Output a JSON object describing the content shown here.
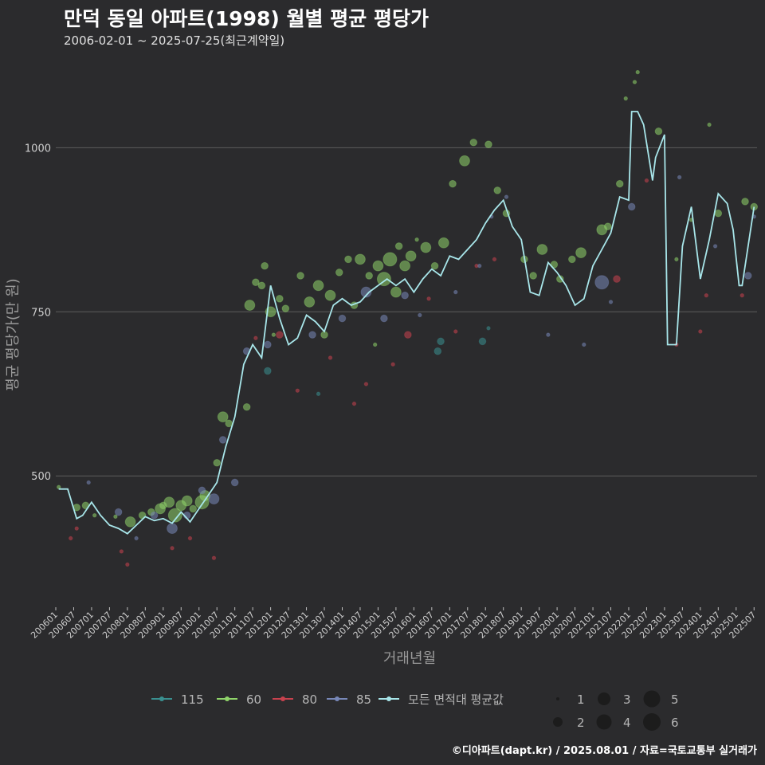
{
  "title": "만덕 동일 아파트(1998) 월별 평균 평당가",
  "subtitle": "2006-02-01 ~ 2025-07-25(최근계약일)",
  "caption": "©디아파트(dapt.kr) / 2025.08.01 / 자료=국토교통부 실거래가",
  "colors": {
    "background": "#2b2b2d",
    "grid": "#5c5c5c",
    "115": "#3a9090",
    "60": "#8fd46a",
    "80": "#c8424e",
    "85": "#7888b8",
    "avg": "#a8e6ea"
  },
  "chart_data": {
    "type": "scatter",
    "xlabel": "거래년월",
    "ylabel": "평균 평당가(만 원)",
    "x_range": [
      "2006-01",
      "2025-08"
    ],
    "ylim": [
      300,
      1140
    ],
    "y_ticks": [
      500,
      750,
      1000
    ],
    "grid": true,
    "legend_position": "bottom",
    "x_ticks": [
      "200601",
      "200607",
      "200701",
      "200707",
      "200801",
      "200807",
      "200901",
      "200907",
      "201001",
      "201007",
      "201101",
      "201107",
      "201201",
      "201207",
      "201301",
      "201307",
      "201401",
      "201407",
      "201501",
      "201507",
      "201601",
      "201607",
      "201701",
      "201707",
      "201801",
      "201807",
      "201901",
      "201907",
      "202001",
      "202007",
      "202101",
      "202107",
      "202201",
      "202207",
      "202301",
      "202307",
      "202401",
      "202407",
      "202501",
      "202507"
    ],
    "series": [
      {
        "name": "115",
        "points": [
          [
            "2011-12",
            660,
            2
          ],
          [
            "2016-09",
            690,
            2
          ],
          [
            "2016-10",
            705,
            2
          ],
          [
            "2017-12",
            705,
            2
          ],
          [
            "2018-02",
            725,
            1
          ],
          [
            "2013-05",
            625,
            1
          ]
        ]
      },
      {
        "name": "60",
        "points": [
          [
            "2006-02",
            483,
            1
          ],
          [
            "2006-08",
            452,
            2
          ],
          [
            "2006-11",
            455,
            2
          ],
          [
            "2007-02",
            440,
            1
          ],
          [
            "2007-09",
            438,
            1
          ],
          [
            "2008-02",
            430,
            3
          ],
          [
            "2008-06",
            440,
            2
          ],
          [
            "2008-09",
            445,
            2
          ],
          [
            "2008-12",
            450,
            3
          ],
          [
            "2009-01",
            455,
            2
          ],
          [
            "2009-03",
            460,
            3
          ],
          [
            "2009-05",
            440,
            4
          ],
          [
            "2009-07",
            455,
            3
          ],
          [
            "2009-09",
            462,
            3
          ],
          [
            "2009-11",
            450,
            2
          ],
          [
            "2010-03",
            470,
            3
          ],
          [
            "2010-07",
            520,
            2
          ],
          [
            "2010-09",
            590,
            3
          ],
          [
            "2010-11",
            580,
            2
          ],
          [
            "2011-05",
            605,
            2
          ],
          [
            "2011-06",
            760,
            3
          ],
          [
            "2011-08",
            795,
            2
          ],
          [
            "2011-10",
            790,
            2
          ],
          [
            "2011-11",
            820,
            2
          ],
          [
            "2012-01",
            750,
            3
          ],
          [
            "2012-02",
            715,
            1
          ],
          [
            "2012-04",
            770,
            2
          ],
          [
            "2012-06",
            755,
            2
          ],
          [
            "2012-11",
            805,
            2
          ],
          [
            "2013-02",
            765,
            3
          ],
          [
            "2013-05",
            790,
            3
          ],
          [
            "2013-07",
            715,
            2
          ],
          [
            "2013-09",
            775,
            3
          ],
          [
            "2013-12",
            810,
            2
          ],
          [
            "2014-03",
            830,
            2
          ],
          [
            "2014-05",
            760,
            2
          ],
          [
            "2014-07",
            830,
            3
          ],
          [
            "2014-10",
            805,
            2
          ],
          [
            "2015-01",
            820,
            3
          ],
          [
            "2015-03",
            800,
            4
          ],
          [
            "2015-05",
            830,
            4
          ],
          [
            "2015-07",
            780,
            3
          ],
          [
            "2015-08",
            850,
            2
          ],
          [
            "2015-10",
            820,
            3
          ],
          [
            "2015-12",
            835,
            3
          ],
          [
            "2016-05",
            848,
            3
          ],
          [
            "2016-08",
            820,
            2
          ],
          [
            "2016-11",
            855,
            3
          ],
          [
            "2017-02",
            945,
            2
          ],
          [
            "2017-06",
            980,
            3
          ],
          [
            "2017-09",
            1008,
            2
          ],
          [
            "2018-02",
            1005,
            2
          ],
          [
            "2018-05",
            935,
            2
          ],
          [
            "2018-08",
            900,
            2
          ],
          [
            "2019-02",
            830,
            2
          ],
          [
            "2019-05",
            805,
            2
          ],
          [
            "2019-08",
            845,
            3
          ],
          [
            "2019-12",
            822,
            2
          ],
          [
            "2020-02",
            800,
            2
          ],
          [
            "2020-06",
            830,
            2
          ],
          [
            "2020-09",
            840,
            3
          ],
          [
            "2021-04",
            875,
            3
          ],
          [
            "2021-06",
            880,
            2
          ],
          [
            "2021-10",
            945,
            2
          ],
          [
            "2021-12",
            1075,
            1
          ],
          [
            "2022-03",
            1100,
            1
          ],
          [
            "2022-04",
            1115,
            1
          ],
          [
            "2022-11",
            1025,
            2
          ],
          [
            "2023-05",
            830,
            1
          ],
          [
            "2023-10",
            890,
            1
          ],
          [
            "2024-04",
            1035,
            1
          ],
          [
            "2024-07",
            900,
            2
          ],
          [
            "2025-04",
            918,
            2
          ],
          [
            "2025-07",
            910,
            2
          ],
          [
            "2014-12",
            700,
            1
          ],
          [
            "2016-02",
            860,
            1
          ],
          [
            "2010-02",
            460,
            4
          ]
        ]
      },
      {
        "name": "80",
        "points": [
          [
            "2006-06",
            405,
            1
          ],
          [
            "2006-08",
            420,
            1
          ],
          [
            "2007-11",
            385,
            1
          ],
          [
            "2008-01",
            365,
            1
          ],
          [
            "2009-04",
            390,
            1
          ],
          [
            "2009-10",
            405,
            1
          ],
          [
            "2010-06",
            375,
            1
          ],
          [
            "2011-08",
            710,
            1
          ],
          [
            "2012-04",
            715,
            2
          ],
          [
            "2012-10",
            630,
            1
          ],
          [
            "2013-09",
            680,
            1
          ],
          [
            "2014-05",
            610,
            1
          ],
          [
            "2014-09",
            640,
            1
          ],
          [
            "2015-06",
            670,
            1
          ],
          [
            "2015-11",
            715,
            2
          ],
          [
            "2016-06",
            770,
            1
          ],
          [
            "2017-03",
            720,
            1
          ],
          [
            "2017-10",
            820,
            1
          ],
          [
            "2018-04",
            830,
            1
          ],
          [
            "2021-09",
            800,
            2
          ],
          [
            "2022-07",
            950,
            1
          ],
          [
            "2023-05",
            700,
            1
          ],
          [
            "2024-01",
            720,
            1
          ],
          [
            "2024-03",
            775,
            1
          ],
          [
            "2025-03",
            775,
            1
          ]
        ]
      },
      {
        "name": "85",
        "points": [
          [
            "2006-12",
            490,
            1
          ],
          [
            "2007-10",
            445,
            2
          ],
          [
            "2008-04",
            405,
            1
          ],
          [
            "2008-10",
            440,
            2
          ],
          [
            "2009-04",
            420,
            3
          ],
          [
            "2009-09",
            440,
            2
          ],
          [
            "2010-02",
            478,
            2
          ],
          [
            "2010-06",
            465,
            3
          ],
          [
            "2010-09",
            555,
            2
          ],
          [
            "2011-01",
            490,
            2
          ],
          [
            "2011-05",
            690,
            2
          ],
          [
            "2011-12",
            700,
            2
          ],
          [
            "2013-03",
            715,
            2
          ],
          [
            "2014-01",
            740,
            2
          ],
          [
            "2014-09",
            780,
            3
          ],
          [
            "2015-03",
            740,
            2
          ],
          [
            "2015-10",
            775,
            2
          ],
          [
            "2016-03",
            745,
            1
          ],
          [
            "2017-03",
            780,
            1
          ],
          [
            "2017-11",
            820,
            1
          ],
          [
            "2018-03",
            895,
            1
          ],
          [
            "2018-08",
            925,
            1
          ],
          [
            "2019-10",
            715,
            1
          ],
          [
            "2020-10",
            700,
            1
          ],
          [
            "2021-04",
            795,
            4
          ],
          [
            "2021-07",
            765,
            1
          ],
          [
            "2022-02",
            910,
            2
          ],
          [
            "2023-06",
            955,
            1
          ],
          [
            "2024-06",
            850,
            1
          ],
          [
            "2025-05",
            805,
            2
          ],
          [
            "2025-07",
            895,
            1
          ]
        ]
      }
    ],
    "average": [
      [
        "2006-02",
        480
      ],
      [
        "2006-05",
        480
      ],
      [
        "2006-08",
        435
      ],
      [
        "2006-10",
        440
      ],
      [
        "2007-01",
        460
      ],
      [
        "2007-04",
        440
      ],
      [
        "2007-07",
        425
      ],
      [
        "2007-10",
        420
      ],
      [
        "2008-01",
        412
      ],
      [
        "2008-04",
        425
      ],
      [
        "2008-07",
        438
      ],
      [
        "2008-10",
        432
      ],
      [
        "2009-01",
        435
      ],
      [
        "2009-04",
        428
      ],
      [
        "2009-07",
        445
      ],
      [
        "2009-10",
        430
      ],
      [
        "2010-01",
        450
      ],
      [
        "2010-04",
        470
      ],
      [
        "2010-07",
        490
      ],
      [
        "2010-10",
        545
      ],
      [
        "2011-01",
        590
      ],
      [
        "2011-04",
        670
      ],
      [
        "2011-07",
        700
      ],
      [
        "2011-10",
        680
      ],
      [
        "2012-01",
        790
      ],
      [
        "2012-04",
        740
      ],
      [
        "2012-07",
        700
      ],
      [
        "2012-10",
        710
      ],
      [
        "2013-01",
        745
      ],
      [
        "2013-04",
        735
      ],
      [
        "2013-07",
        720
      ],
      [
        "2013-10",
        760
      ],
      [
        "2014-01",
        770
      ],
      [
        "2014-04",
        760
      ],
      [
        "2014-07",
        765
      ],
      [
        "2014-10",
        780
      ],
      [
        "2015-01",
        790
      ],
      [
        "2015-04",
        800
      ],
      [
        "2015-07",
        790
      ],
      [
        "2015-10",
        800
      ],
      [
        "2016-01",
        780
      ],
      [
        "2016-04",
        800
      ],
      [
        "2016-07",
        815
      ],
      [
        "2016-10",
        805
      ],
      [
        "2017-01",
        835
      ],
      [
        "2017-04",
        830
      ],
      [
        "2017-07",
        845
      ],
      [
        "2017-10",
        860
      ],
      [
        "2018-01",
        885
      ],
      [
        "2018-04",
        905
      ],
      [
        "2018-07",
        920
      ],
      [
        "2018-10",
        880
      ],
      [
        "2019-01",
        860
      ],
      [
        "2019-04",
        780
      ],
      [
        "2019-07",
        775
      ],
      [
        "2019-10",
        825
      ],
      [
        "2020-01",
        810
      ],
      [
        "2020-04",
        790
      ],
      [
        "2020-07",
        760
      ],
      [
        "2020-10",
        770
      ],
      [
        "2021-01",
        820
      ],
      [
        "2021-04",
        845
      ],
      [
        "2021-07",
        870
      ],
      [
        "2021-10",
        925
      ],
      [
        "2022-01",
        920
      ],
      [
        "2022-02",
        1055
      ],
      [
        "2022-04",
        1055
      ],
      [
        "2022-06",
        1035
      ],
      [
        "2022-09",
        950
      ],
      [
        "2022-10",
        985
      ],
      [
        "2023-01",
        1020
      ],
      [
        "2023-02",
        700
      ],
      [
        "2023-05",
        700
      ],
      [
        "2023-07",
        850
      ],
      [
        "2023-10",
        910
      ],
      [
        "2024-01",
        800
      ],
      [
        "2024-04",
        860
      ],
      [
        "2024-07",
        930
      ],
      [
        "2024-10",
        915
      ],
      [
        "2024-12",
        875
      ],
      [
        "2025-02",
        790
      ],
      [
        "2025-03",
        790
      ],
      [
        "2025-05",
        850
      ],
      [
        "2025-07",
        910
      ]
    ],
    "legend": {
      "series_labels": [
        "115",
        "60",
        "80",
        "85",
        "모든 면적대 평균값"
      ],
      "size_labels": [
        "1",
        "2",
        "3",
        "4",
        "5",
        "6"
      ]
    }
  }
}
